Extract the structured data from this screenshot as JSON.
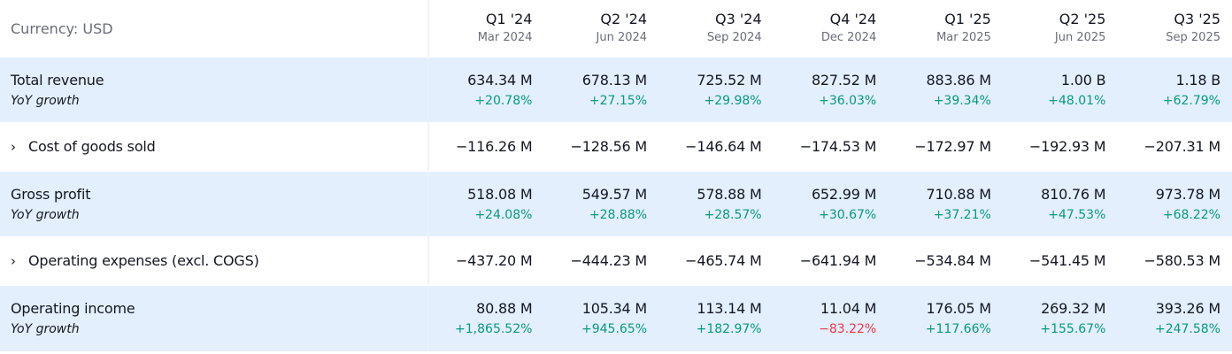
{
  "currency_label": "Currency: USD",
  "periods": [
    {
      "quarter": "Q1 '24",
      "date": "Mar 2024"
    },
    {
      "quarter": "Q2 '24",
      "date": "Jun 2024"
    },
    {
      "quarter": "Q3 '24",
      "date": "Sep 2024"
    },
    {
      "quarter": "Q4 '24",
      "date": "Dec 2024"
    },
    {
      "quarter": "Q1 '25",
      "date": "Mar 2025"
    },
    {
      "quarter": "Q2 '25",
      "date": "Jun 2025"
    },
    {
      "quarter": "Q3 '25",
      "date": "Sep 2025"
    }
  ],
  "colors": {
    "positive": "#089981",
    "negative": "#f23645",
    "highlight_row": "#e3effd"
  },
  "rows": [
    {
      "label": "Total revenue",
      "sub_label": "YoY growth",
      "expandable": false,
      "highlight": true,
      "values": [
        "634.34 M",
        "678.13 M",
        "725.52 M",
        "827.52 M",
        "883.86 M",
        "1.00 B",
        "1.18 B"
      ],
      "growth": [
        "+20.78%",
        "+27.15%",
        "+29.98%",
        "+36.03%",
        "+39.34%",
        "+48.01%",
        "+62.79%"
      ]
    },
    {
      "label": "Cost of goods sold",
      "expandable": true,
      "highlight": false,
      "values": [
        "−116.26 M",
        "−128.56 M",
        "−146.64 M",
        "−174.53 M",
        "−172.97 M",
        "−192.93 M",
        "−207.31 M"
      ]
    },
    {
      "label": "Gross profit",
      "sub_label": "YoY growth",
      "expandable": false,
      "highlight": true,
      "values": [
        "518.08 M",
        "549.57 M",
        "578.88 M",
        "652.99 M",
        "710.88 M",
        "810.76 M",
        "973.78 M"
      ],
      "growth": [
        "+24.08%",
        "+28.88%",
        "+28.57%",
        "+30.67%",
        "+37.21%",
        "+47.53%",
        "+68.22%"
      ]
    },
    {
      "label": "Operating expenses (excl. COGS)",
      "expandable": true,
      "highlight": false,
      "values": [
        "−437.20 M",
        "−444.23 M",
        "−465.74 M",
        "−641.94 M",
        "−534.84 M",
        "−541.45 M",
        "−580.53 M"
      ]
    },
    {
      "label": "Operating income",
      "sub_label": "YoY growth",
      "expandable": false,
      "highlight": true,
      "values": [
        "80.88 M",
        "105.34 M",
        "113.14 M",
        "11.04 M",
        "176.05 M",
        "269.32 M",
        "393.26 M"
      ],
      "growth": [
        "+1,865.52%",
        "+945.65%",
        "+182.97%",
        "−83.22%",
        "+117.66%",
        "+155.67%",
        "+247.58%"
      ]
    }
  ]
}
